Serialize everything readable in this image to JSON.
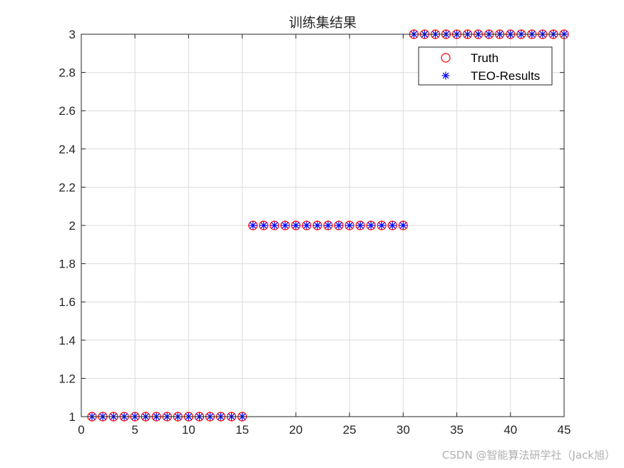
{
  "chart_data": {
    "type": "scatter",
    "title": "训练集结果",
    "xlabel": "",
    "ylabel": "",
    "xlim": [
      0,
      45
    ],
    "ylim": [
      1,
      3
    ],
    "xticks": [
      0,
      5,
      10,
      15,
      20,
      25,
      30,
      35,
      40,
      45
    ],
    "yticks": [
      1,
      1.2,
      1.4,
      1.6,
      1.8,
      2,
      2.2,
      2.4,
      2.6,
      2.8,
      3
    ],
    "ytick_labels": [
      "1",
      "1.2",
      "1.4",
      "1.6",
      "1.8",
      "2",
      "2.2",
      "2.4",
      "2.6",
      "2.8",
      "3"
    ],
    "grid": true,
    "legend_position": "top-right",
    "x": [
      1,
      2,
      3,
      4,
      5,
      6,
      7,
      8,
      9,
      10,
      11,
      12,
      13,
      14,
      15,
      16,
      17,
      18,
      19,
      20,
      21,
      22,
      23,
      24,
      25,
      26,
      27,
      28,
      29,
      30,
      31,
      32,
      33,
      34,
      35,
      36,
      37,
      38,
      39,
      40,
      41,
      42,
      43,
      44,
      45
    ],
    "series": [
      {
        "name": "Truth",
        "marker": "circle",
        "color": "#ff0000",
        "values": [
          1,
          1,
          1,
          1,
          1,
          1,
          1,
          1,
          1,
          1,
          1,
          1,
          1,
          1,
          1,
          2,
          2,
          2,
          2,
          2,
          2,
          2,
          2,
          2,
          2,
          2,
          2,
          2,
          2,
          2,
          3,
          3,
          3,
          3,
          3,
          3,
          3,
          3,
          3,
          3,
          3,
          3,
          3,
          3,
          3
        ]
      },
      {
        "name": "TEO-Results",
        "marker": "asterisk",
        "color": "#0000ff",
        "values": [
          1,
          1,
          1,
          1,
          1,
          1,
          1,
          1,
          1,
          1,
          1,
          1,
          1,
          1,
          1,
          2,
          2,
          2,
          2,
          2,
          2,
          2,
          2,
          2,
          2,
          2,
          2,
          2,
          2,
          2,
          3,
          3,
          3,
          3,
          3,
          3,
          3,
          3,
          3,
          3,
          3,
          3,
          3,
          3,
          3
        ]
      }
    ]
  },
  "watermark": "CSDN @智能算法研学社（Jack旭）"
}
